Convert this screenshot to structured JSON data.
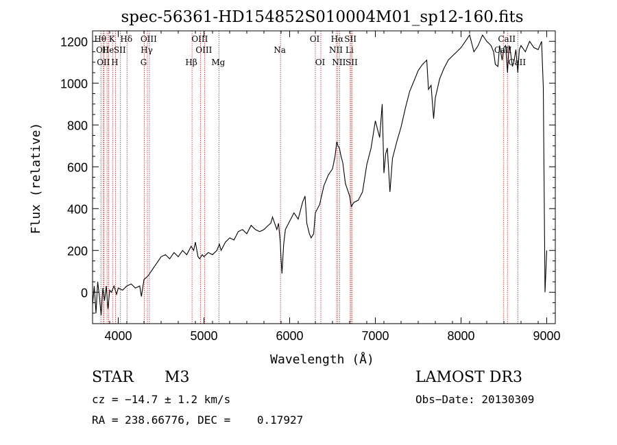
{
  "chart_data": {
    "type": "line",
    "title": "spec-56361-HD154852S010004M01_sp12-160.fits",
    "xlabel": "Wavelength (Å)",
    "ylabel": "Flux (relative)",
    "xlim": [
      3700,
      9100
    ],
    "ylim": [
      -150,
      1250
    ],
    "x_ticks": [
      4000,
      5000,
      6000,
      7000,
      8000,
      9000
    ],
    "y_ticks": [
      0,
      200,
      400,
      600,
      800,
      1000,
      1200
    ],
    "grid": false,
    "series": [
      {
        "name": "flux",
        "x": [
          3700,
          3720,
          3740,
          3760,
          3780,
          3800,
          3820,
          3840,
          3860,
          3880,
          3900,
          3920,
          3950,
          3980,
          4000,
          4050,
          4100,
          4150,
          4200,
          4250,
          4270,
          4300,
          4350,
          4400,
          4450,
          4500,
          4550,
          4600,
          4650,
          4700,
          4750,
          4800,
          4850,
          4880,
          4900,
          4930,
          4950,
          4980,
          5000,
          5050,
          5100,
          5150,
          5180,
          5200,
          5250,
          5300,
          5350,
          5400,
          5450,
          5500,
          5550,
          5600,
          5650,
          5700,
          5750,
          5780,
          5800,
          5850,
          5870,
          5890,
          5900,
          5910,
          5930,
          5950,
          6000,
          6050,
          6100,
          6150,
          6180,
          6200,
          6230,
          6250,
          6280,
          6300,
          6350,
          6400,
          6450,
          6500,
          6530,
          6550,
          6563,
          6580,
          6600,
          6620,
          6650,
          6700,
          6720,
          6750,
          6800,
          6850,
          6900,
          6950,
          7000,
          7050,
          7080,
          7100,
          7120,
          7140,
          7170,
          7200,
          7250,
          7300,
          7350,
          7400,
          7450,
          7500,
          7550,
          7600,
          7620,
          7650,
          7680,
          7700,
          7750,
          7800,
          7850,
          7900,
          7950,
          8000,
          8050,
          8100,
          8150,
          8200,
          8250,
          8300,
          8350,
          8380,
          8400,
          8430,
          8450,
          8480,
          8500,
          8520,
          8542,
          8560,
          8580,
          8600,
          8620,
          8640,
          8662,
          8680,
          8700,
          8750,
          8800,
          8850,
          8900,
          8940,
          8960,
          8980,
          9000
        ],
        "y": [
          -60,
          30,
          -100,
          50,
          -20,
          -110,
          20,
          -40,
          30,
          -80,
          10,
          0,
          30,
          -10,
          20,
          10,
          30,
          40,
          20,
          30,
          -20,
          60,
          80,
          110,
          140,
          170,
          180,
          160,
          190,
          170,
          200,
          180,
          220,
          200,
          240,
          170,
          160,
          180,
          170,
          190,
          180,
          200,
          230,
          200,
          240,
          260,
          250,
          290,
          300,
          280,
          320,
          300,
          290,
          300,
          320,
          330,
          360,
          300,
          330,
          240,
          160,
          90,
          230,
          300,
          340,
          380,
          350,
          430,
          460,
          330,
          280,
          260,
          280,
          380,
          420,
          510,
          560,
          590,
          650,
          720,
          700,
          690,
          650,
          620,
          520,
          460,
          410,
          430,
          440,
          480,
          610,
          690,
          820,
          740,
          900,
          570,
          660,
          690,
          480,
          640,
          720,
          790,
          880,
          960,
          1010,
          1060,
          1090,
          1110,
          970,
          990,
          830,
          930,
          1020,
          1070,
          1110,
          1130,
          1150,
          1170,
          1200,
          1230,
          1150,
          1180,
          1230,
          1200,
          1180,
          1150,
          1090,
          1080,
          1180,
          1110,
          1170,
          1180,
          1050,
          1180,
          1140,
          1080,
          1110,
          1160,
          1050,
          1160,
          1180,
          1150,
          1200,
          1170,
          1160,
          1200,
          980,
          0,
          200
        ]
      }
    ],
    "lines": [
      {
        "w": 3798,
        "name": "Hθ",
        "row": 1
      },
      {
        "w": 3826,
        "name": "OII",
        "row": 2
      },
      {
        "w": 3835,
        "name": "OII",
        "row": 3
      },
      {
        "w": 3869,
        "name": "",
        "row": 0
      },
      {
        "w": 3889,
        "name": "He",
        "row": 2
      },
      {
        "w": 3934,
        "name": "K",
        "row": 1
      },
      {
        "w": 3968,
        "name": "H",
        "row": 3
      },
      {
        "w": 4026,
        "name": "SII",
        "row": 2
      },
      {
        "w": 4102,
        "name": "Hδ",
        "row": 1
      },
      {
        "w": 4304,
        "name": "G",
        "row": 3
      },
      {
        "w": 4340,
        "name": "Hγ",
        "row": 2
      },
      {
        "w": 4363,
        "name": "OIII",
        "row": 1
      },
      {
        "w": 4861,
        "name": "Hβ",
        "row": 3
      },
      {
        "w": 4959,
        "name": "OIII",
        "row": 1
      },
      {
        "w": 5007,
        "name": "OIII",
        "row": 2
      },
      {
        "w": 5175,
        "name": "Mg",
        "row": 3
      },
      {
        "w": 5893,
        "name": "Na",
        "row": 2
      },
      {
        "w": 6300,
        "name": "OI",
        "row": 1
      },
      {
        "w": 6364,
        "name": "OI",
        "row": 3
      },
      {
        "w": 6548,
        "name": "NII",
        "row": 2
      },
      {
        "w": 6563,
        "name": "Hα",
        "row": 1
      },
      {
        "w": 6583,
        "name": "NII",
        "row": 3
      },
      {
        "w": 6707,
        "name": "Li",
        "row": 2
      },
      {
        "w": 6717,
        "name": "SII",
        "row": 1
      },
      {
        "w": 6731,
        "name": "SII",
        "row": 3
      },
      {
        "w": 8498,
        "name": "CaII",
        "row": 2
      },
      {
        "w": 8542,
        "name": "CaII",
        "row": 1
      },
      {
        "w": 8662,
        "name": "CaII",
        "row": 3
      }
    ]
  },
  "info": {
    "object_class": "STAR",
    "subclass": "M3",
    "survey": "LAMOST DR3",
    "cz": "cz = −14.7 ± 1.2 km/s",
    "obs_date": "Obs−Date: 20130309",
    "coords": "RA = 238.66776, DEC =    0.17927"
  },
  "colors": {
    "spectrum": "#000000",
    "line_marker": "#b22222",
    "axes": "#000000",
    "background": "#ffffff"
  }
}
